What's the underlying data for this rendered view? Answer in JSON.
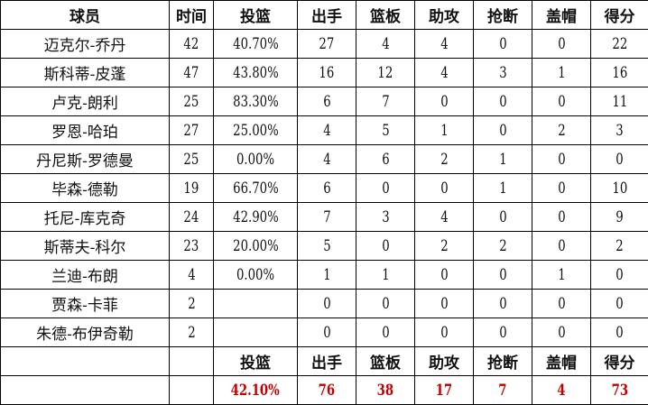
{
  "headers": [
    "球员",
    "时间",
    "投篮",
    "出手",
    "篮板",
    "助攻",
    "抢断",
    "盖帽",
    "得分"
  ],
  "rows": [
    [
      "迈克尔-乔丹",
      "42",
      "40.70%",
      "27",
      "4",
      "4",
      "0",
      "0",
      "22"
    ],
    [
      "斯科蒂-皮蓬",
      "47",
      "43.80%",
      "16",
      "12",
      "4",
      "3",
      "1",
      "16"
    ],
    [
      "卢克-朗利",
      "25",
      "83.30%",
      "6",
      "7",
      "0",
      "0",
      "0",
      "11"
    ],
    [
      "罗恩-哈珀",
      "27",
      "25.00%",
      "4",
      "5",
      "1",
      "0",
      "2",
      "3"
    ],
    [
      "丹尼斯-罗德曼",
      "25",
      "0.00%",
      "4",
      "6",
      "2",
      "1",
      "0",
      "0"
    ],
    [
      "毕森-德勒",
      "19",
      "66.70%",
      "6",
      "0",
      "0",
      "1",
      "0",
      "10"
    ],
    [
      "托尼-库克奇",
      "24",
      "42.90%",
      "7",
      "3",
      "4",
      "0",
      "0",
      "9"
    ],
    [
      "斯蒂夫-科尔",
      "23",
      "20.00%",
      "5",
      "0",
      "2",
      "2",
      "0",
      "2"
    ],
    [
      "兰迪-布朗",
      "4",
      "0.00%",
      "1",
      "1",
      "0",
      "0",
      "1",
      "0"
    ],
    [
      "贾森-卡菲",
      "2",
      "",
      "0",
      "0",
      "0",
      "0",
      "0",
      "0"
    ],
    [
      "朱德-布伊奇勒",
      "2",
      "",
      "0",
      "0",
      "0",
      "0",
      "0",
      "0"
    ]
  ],
  "summary_headers": [
    "投篮",
    "出手",
    "篮板",
    "助攻",
    "抢断",
    "盖帽",
    "得分"
  ],
  "totals": [
    "42.10%",
    "76",
    "38",
    "17",
    "7",
    "4",
    "73"
  ],
  "colors": {
    "totals": "#c00000",
    "border": "#000000"
  }
}
